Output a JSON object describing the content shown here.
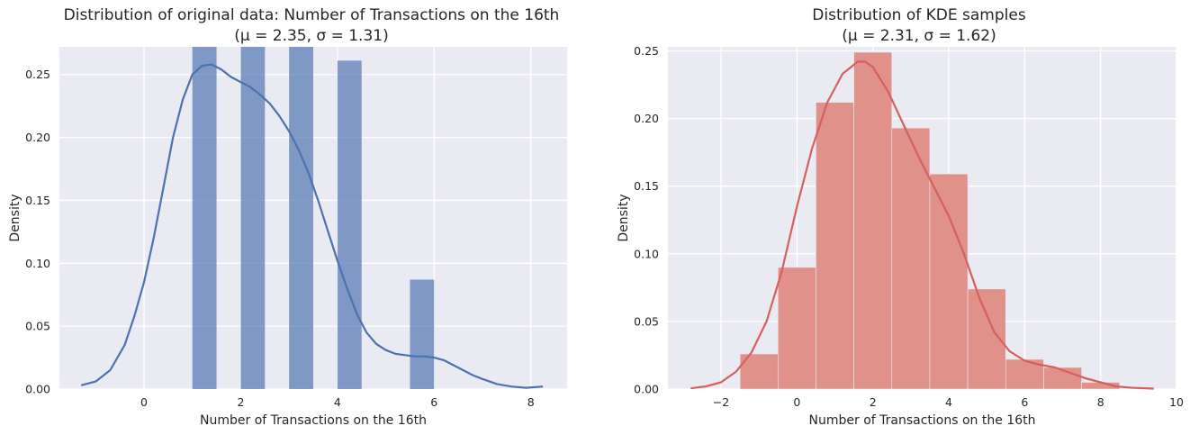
{
  "chart_data": [
    {
      "type": "bar",
      "title": "Distribution of original data: Number of Transactions on the 16th",
      "subtitle": "(μ = 2.35, σ = 1.31)",
      "xlabel": "Number of Transactions on the 16th",
      "ylabel": "Density",
      "xlim": [
        -1.75,
        8.75
      ],
      "ylim": [
        0,
        0.272
      ],
      "xticks": [
        0,
        2,
        4,
        6,
        8
      ],
      "xtick_labels": [
        "0",
        "2",
        "4",
        "6",
        "8"
      ],
      "yticks": [
        0,
        0.05,
        0.1,
        0.15,
        0.2,
        0.25
      ],
      "ytick_labels": [
        "0.00",
        "0.05",
        "0.10",
        "0.15",
        "0.20",
        "0.25"
      ],
      "grid": true,
      "bar_color": "#4c72b0",
      "line_color": "#4c72b0",
      "bars": [
        {
          "x0": 1.0,
          "x1": 1.5,
          "value": 0.272
        },
        {
          "x0": 2.0,
          "x1": 2.5,
          "value": 0.272
        },
        {
          "x0": 3.0,
          "x1": 3.5,
          "value": 0.272
        },
        {
          "x0": 4.0,
          "x1": 4.5,
          "value": 0.261
        },
        {
          "x0": 5.5,
          "x1": 6.0,
          "value": 0.087
        }
      ],
      "kde": {
        "x": [
          -1.3,
          -1.0,
          -0.7,
          -0.4,
          -0.2,
          0.0,
          0.2,
          0.4,
          0.6,
          0.8,
          1.0,
          1.2,
          1.4,
          1.6,
          1.8,
          2.0,
          2.2,
          2.4,
          2.6,
          2.8,
          3.0,
          3.2,
          3.4,
          3.6,
          3.8,
          4.0,
          4.2,
          4.4,
          4.6,
          4.8,
          5.0,
          5.2,
          5.4,
          5.6,
          5.8,
          6.0,
          6.2,
          6.4,
          6.6,
          6.8,
          7.0,
          7.3,
          7.6,
          7.9,
          8.25
        ],
        "y": [
          0.003,
          0.006,
          0.015,
          0.035,
          0.058,
          0.085,
          0.12,
          0.16,
          0.2,
          0.23,
          0.25,
          0.257,
          0.258,
          0.254,
          0.248,
          0.244,
          0.24,
          0.234,
          0.227,
          0.217,
          0.205,
          0.19,
          0.172,
          0.15,
          0.126,
          0.102,
          0.08,
          0.06,
          0.045,
          0.036,
          0.031,
          0.028,
          0.027,
          0.026,
          0.026,
          0.025,
          0.023,
          0.019,
          0.015,
          0.011,
          0.008,
          0.004,
          0.002,
          0.001,
          0.002
        ]
      }
    },
    {
      "type": "bar",
      "title": "Distribution of KDE samples",
      "subtitle": "(μ = 2.31, σ = 1.62)",
      "xlabel": "Number of Transactions on the 16th",
      "ylabel": "Density",
      "xlim": [
        -3.4,
        10.0
      ],
      "ylim": [
        0,
        0.253
      ],
      "xticks": [
        -2,
        0,
        2,
        4,
        6,
        8,
        10
      ],
      "xtick_labels": [
        "−2",
        "0",
        "2",
        "4",
        "6",
        "8",
        "10"
      ],
      "yticks": [
        0,
        0.05,
        0.1,
        0.15,
        0.2,
        0.25
      ],
      "ytick_labels": [
        "0.00",
        "0.05",
        "0.10",
        "0.15",
        "0.20",
        "0.25"
      ],
      "grid": true,
      "bar_color": "#dd8452",
      "line_color": "#d65f5f",
      "bar_fill": "#e0918a",
      "bars": [
        {
          "x0": -1.5,
          "x1": -0.5,
          "value": 0.026
        },
        {
          "x0": -0.5,
          "x1": 0.5,
          "value": 0.09
        },
        {
          "x0": 0.5,
          "x1": 1.5,
          "value": 0.212
        },
        {
          "x0": 1.5,
          "x1": 2.5,
          "value": 0.249
        },
        {
          "x0": 2.5,
          "x1": 3.5,
          "value": 0.193
        },
        {
          "x0": 3.5,
          "x1": 4.5,
          "value": 0.159
        },
        {
          "x0": 4.5,
          "x1": 5.5,
          "value": 0.074
        },
        {
          "x0": 5.5,
          "x1": 6.5,
          "value": 0.022
        },
        {
          "x0": 6.5,
          "x1": 7.5,
          "value": 0.016
        },
        {
          "x0": 7.5,
          "x1": 8.5,
          "value": 0.005
        }
      ],
      "kde": {
        "x": [
          -2.8,
          -2.4,
          -2.0,
          -1.6,
          -1.2,
          -0.8,
          -0.4,
          0.0,
          0.4,
          0.8,
          1.2,
          1.6,
          1.8,
          2.0,
          2.4,
          2.8,
          3.2,
          3.6,
          4.0,
          4.4,
          4.8,
          5.2,
          5.6,
          6.0,
          6.4,
          6.8,
          7.2,
          7.6,
          8.0,
          8.4,
          8.8,
          9.4
        ],
        "y": [
          0.0005,
          0.002,
          0.005,
          0.013,
          0.027,
          0.05,
          0.087,
          0.135,
          0.178,
          0.212,
          0.233,
          0.242,
          0.242,
          0.238,
          0.22,
          0.196,
          0.172,
          0.15,
          0.128,
          0.1,
          0.068,
          0.042,
          0.028,
          0.021,
          0.018,
          0.016,
          0.012,
          0.008,
          0.005,
          0.002,
          0.001,
          0.0003
        ]
      }
    }
  ]
}
